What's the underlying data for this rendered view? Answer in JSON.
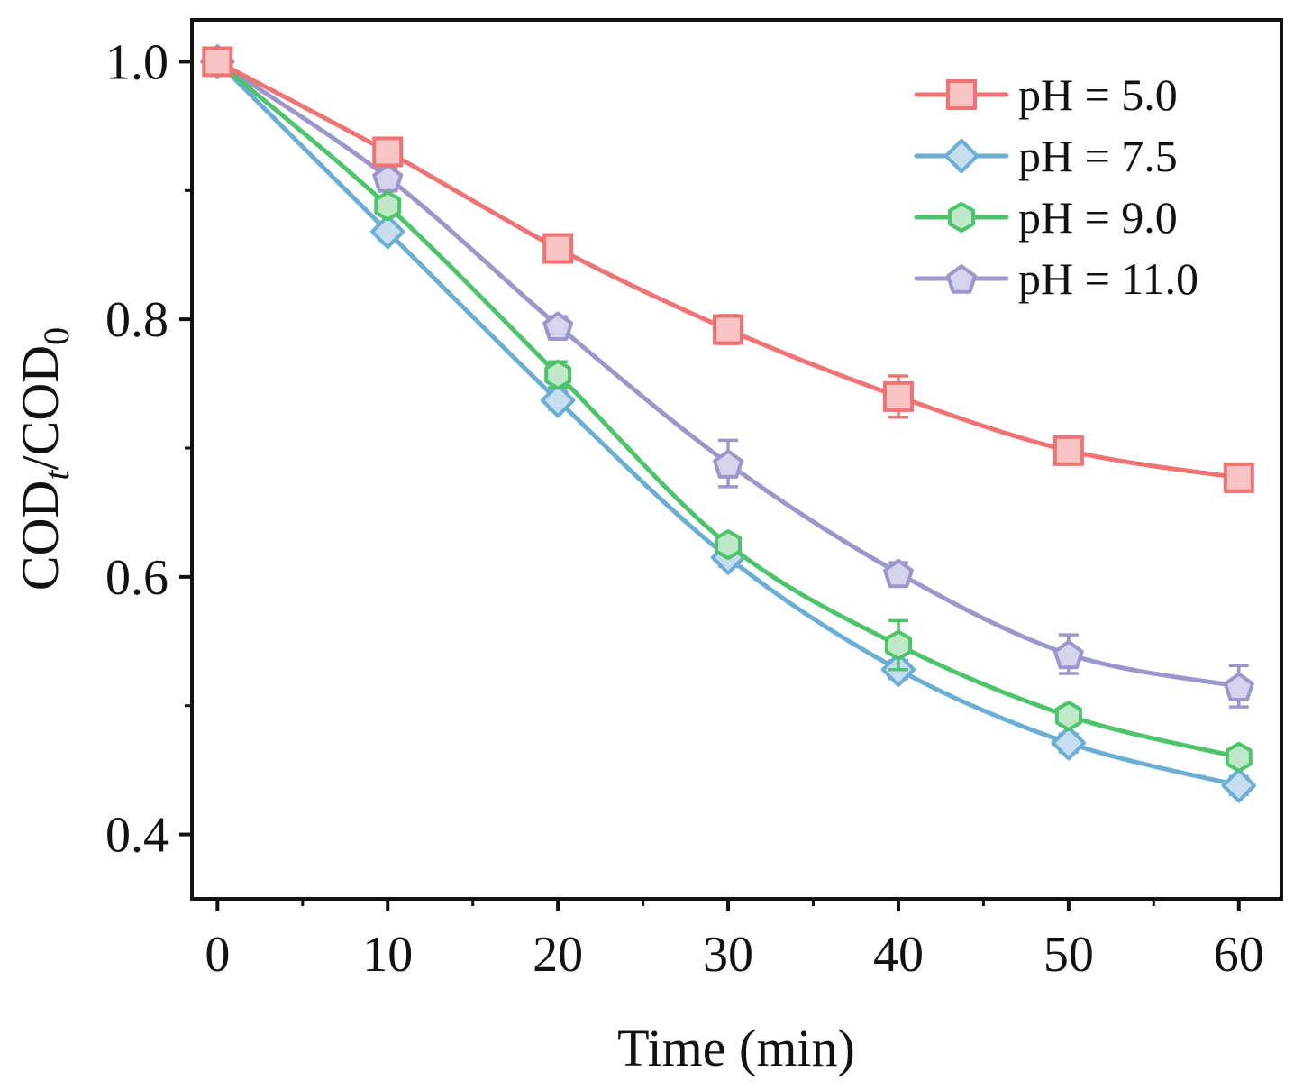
{
  "chart_data": {
    "type": "line",
    "title": "",
    "xlabel": "Time (min)",
    "ylabel_main": "COD",
    "ylabel_sub1": "t",
    "ylabel_mid": "/COD",
    "ylabel_sub2": "0",
    "x": [
      0,
      10,
      20,
      30,
      40,
      50,
      60
    ],
    "xlim": [
      -1.5,
      62.5
    ],
    "ylim": [
      0.35,
      1.0325
    ],
    "xticks": [
      0,
      10,
      20,
      30,
      40,
      50,
      60
    ],
    "xtick_labels": [
      "0",
      "10",
      "20",
      "30",
      "40",
      "50",
      "60"
    ],
    "yticks": [
      0.4,
      0.6,
      0.8,
      1.0
    ],
    "ytick_labels": [
      "0.4",
      "0.6",
      "0.8",
      "1.0"
    ],
    "grid": false,
    "legend_position": "top-right",
    "series": [
      {
        "name": "pH = 5.0",
        "marker": "square",
        "color": "#f07272",
        "fill": "#f9c4c4",
        "values": [
          1.0,
          0.93,
          0.855,
          0.792,
          0.74,
          0.698,
          0.677
        ],
        "errors": [
          0.005,
          0.009,
          0.008,
          0.011,
          0.016,
          0.008,
          0.007
        ]
      },
      {
        "name": "pH = 7.5",
        "marker": "diamond",
        "color": "#6aaed6",
        "fill": "#c7ddf0",
        "values": [
          1.0,
          0.868,
          0.737,
          0.615,
          0.528,
          0.471,
          0.438
        ],
        "errors": [
          0.004,
          0.006,
          0.007,
          0.007,
          0.007,
          0.007,
          0.007
        ]
      },
      {
        "name": "pH = 9.0",
        "marker": "hexagon",
        "color": "#4cc46a",
        "fill": "#bfe8c8",
        "values": [
          1.0,
          0.888,
          0.757,
          0.625,
          0.547,
          0.492,
          0.46
        ],
        "errors": [
          0.004,
          0.007,
          0.01,
          0.006,
          0.019,
          0.007,
          0.007
        ]
      },
      {
        "name": "pH = 11.0",
        "marker": "pentagon",
        "color": "#9b96cc",
        "fill": "#d6d3ec",
        "values": [
          1.0,
          0.91,
          0.795,
          0.688,
          0.603,
          0.54,
          0.515
        ],
        "errors": [
          0.004,
          0.007,
          0.007,
          0.018,
          0.008,
          0.015,
          0.016
        ]
      }
    ]
  }
}
